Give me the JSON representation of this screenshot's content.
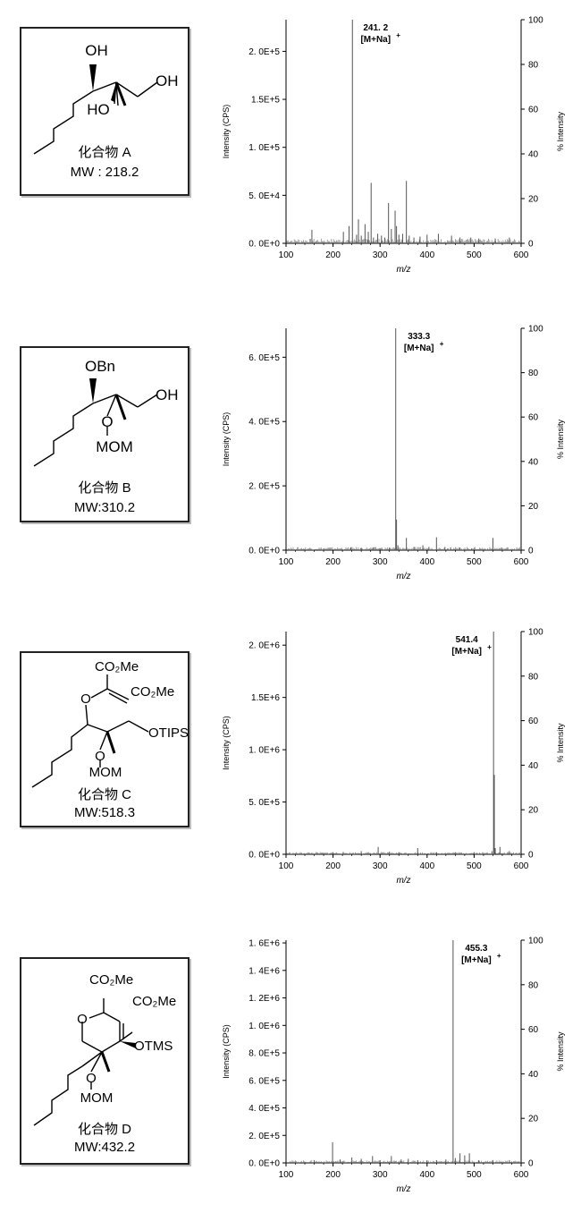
{
  "panels": [
    {
      "compound": {
        "name": "化合物 A",
        "mw": "MW : 218.2",
        "groups": {
          "top": "OH",
          "right": "OH",
          "left": "HO"
        }
      },
      "chart_data": {
        "type": "bar",
        "xlabel": "m/z",
        "ylabel": "Intensity (CPS)",
        "y2label": "% Intensity",
        "xlim": [
          100,
          600
        ],
        "ylim": [
          0,
          233000
        ],
        "yticks": [
          0,
          50000,
          100000,
          150000,
          200000
        ],
        "ytick_labels": [
          "0. 0E+0",
          "5. 0E+4",
          "1. 0E+5",
          "1.5E+5",
          "2. 0E+5"
        ],
        "y2ticks": [
          0,
          20,
          40,
          60,
          80,
          100
        ],
        "xticks": [
          100,
          200,
          300,
          400,
          500,
          600
        ],
        "annotation": {
          "mz": 241.2,
          "line1": "241. 2",
          "line2": "[M+Na]",
          "sup": "+"
        },
        "peaks": [
          [
            155,
            14000
          ],
          [
            222,
            12000
          ],
          [
            234,
            18000
          ],
          [
            241.2,
            233000
          ],
          [
            250,
            9000
          ],
          [
            254,
            25000
          ],
          [
            260,
            8000
          ],
          [
            268,
            20000
          ],
          [
            275,
            12000
          ],
          [
            281,
            63000
          ],
          [
            286,
            6000
          ],
          [
            295,
            10000
          ],
          [
            303,
            8000
          ],
          [
            310,
            6000
          ],
          [
            318,
            42000
          ],
          [
            324,
            15000
          ],
          [
            332,
            34000
          ],
          [
            335,
            18000
          ],
          [
            340,
            9000
          ],
          [
            348,
            10000
          ],
          [
            356,
            65000
          ],
          [
            362,
            8000
          ],
          [
            372,
            6000
          ],
          [
            385,
            7000
          ],
          [
            400,
            9000
          ],
          [
            424,
            10000
          ],
          [
            452,
            8000
          ],
          [
            470,
            6000
          ],
          [
            493,
            6000
          ],
          [
            510,
            5000
          ],
          [
            545,
            5000
          ],
          [
            575,
            6000
          ]
        ],
        "noise_level": 4000
      }
    },
    {
      "compound": {
        "name": "化合物 B",
        "mw": "MW:310.2",
        "groups": {
          "top": "OBn",
          "right": "OH",
          "o": "O",
          "bottom": "MOM"
        }
      },
      "chart_data": {
        "type": "bar",
        "xlabel": "m/z",
        "ylabel": "Intensity (CPS)",
        "y2label": "% Intensity",
        "xlim": [
          100,
          600
        ],
        "ylim": [
          0,
          690000
        ],
        "yticks": [
          0,
          200000,
          400000,
          600000
        ],
        "ytick_labels": [
          "0. 0E+0",
          "2. 0E+5",
          "4. 0E+5",
          "6. 0E+5"
        ],
        "y2ticks": [
          0,
          20,
          40,
          60,
          80,
          100
        ],
        "xticks": [
          100,
          200,
          300,
          400,
          500,
          600
        ],
        "annotation": {
          "mz": 333.3,
          "line1": "333.3",
          "line2": "[M+Na]",
          "sup": "+"
        },
        "peaks": [
          [
            238,
            9000
          ],
          [
            260,
            6000
          ],
          [
            285,
            8000
          ],
          [
            300,
            6000
          ],
          [
            320,
            8000
          ],
          [
            333.3,
            690000
          ],
          [
            335,
            95000
          ],
          [
            338,
            15000
          ],
          [
            356,
            38000
          ],
          [
            372,
            10000
          ],
          [
            391,
            15000
          ],
          [
            404,
            10000
          ],
          [
            420,
            40000
          ],
          [
            438,
            10000
          ],
          [
            450,
            9000
          ],
          [
            470,
            8000
          ],
          [
            495,
            6000
          ],
          [
            540,
            38000
          ],
          [
            560,
            6000
          ]
        ],
        "noise_level": 8000
      }
    },
    {
      "compound": {
        "name": "化合物 C",
        "mw": "MW:518.3",
        "groups": {
          "ester1": "CO₂Me",
          "ester2": "CO₂Me",
          "o": "O",
          "right": "OTIPS",
          "o2": "O",
          "bottom": "MOM"
        }
      },
      "chart_data": {
        "type": "bar",
        "xlabel": "m/z",
        "ylabel": "Intensity (CPS)",
        "y2label": "% Intensity",
        "xlim": [
          100,
          600
        ],
        "ylim": [
          0,
          2130000
        ],
        "yticks": [
          0,
          500000,
          1000000,
          1500000,
          2000000
        ],
        "ytick_labels": [
          "0. 0E+0",
          "5. 0E+5",
          "1. 0E+6",
          "1.5E+6",
          "2. 0E+6"
        ],
        "y2ticks": [
          0,
          20,
          40,
          60,
          80,
          100
        ],
        "xticks": [
          100,
          200,
          300,
          400,
          500,
          600
        ],
        "annotation": {
          "mz": 541.4,
          "line1": "541.4",
          "line2": "[M+Na]",
          "sup": "+"
        },
        "peaks": [
          [
            200,
            20000
          ],
          [
            260,
            30000
          ],
          [
            296,
            70000
          ],
          [
            320,
            25000
          ],
          [
            340,
            20000
          ],
          [
            380,
            60000
          ],
          [
            420,
            20000
          ],
          [
            460,
            20000
          ],
          [
            500,
            20000
          ],
          [
            538,
            30000
          ],
          [
            541.4,
            2130000
          ],
          [
            543,
            760000
          ],
          [
            545,
            60000
          ],
          [
            555,
            70000
          ],
          [
            575,
            30000
          ]
        ],
        "noise_level": 18000
      }
    },
    {
      "compound": {
        "name": "化合物 D",
        "mw": "MW:432.2",
        "groups": {
          "ester1": "CO₂Me",
          "ester2": "CO₂Me",
          "o": "O",
          "right": "OTMS",
          "o2": "O",
          "bottom": "MOM"
        }
      },
      "chart_data": {
        "type": "bar",
        "xlabel": "m/z",
        "ylabel": "Intensity (CPS)",
        "y2label": "% Intensity",
        "xlim": [
          100,
          600
        ],
        "ylim": [
          0,
          1620000
        ],
        "yticks": [
          0,
          200000,
          400000,
          600000,
          800000,
          1000000,
          1200000,
          1400000,
          1600000
        ],
        "ytick_labels": [
          "0. 0E+0",
          "2. 0E+5",
          "4. 0E+5",
          "6. 0E+5",
          "8. 0E+5",
          "1. 0E+6",
          "1. 2E+6",
          "1. 4E+6",
          "1. 6E+6"
        ],
        "y2ticks": [
          0,
          20,
          40,
          60,
          80,
          100
        ],
        "xticks": [
          100,
          200,
          300,
          400,
          500,
          600
        ],
        "annotation": {
          "mz": 455.3,
          "line1": "455.3",
          "line2": "[M+Na]",
          "sup": "+"
        },
        "peaks": [
          [
            160,
            20000
          ],
          [
            199,
            150000
          ],
          [
            215,
            25000
          ],
          [
            240,
            40000
          ],
          [
            260,
            30000
          ],
          [
            284,
            50000
          ],
          [
            300,
            20000
          ],
          [
            324,
            50000
          ],
          [
            345,
            25000
          ],
          [
            360,
            30000
          ],
          [
            380,
            20000
          ],
          [
            400,
            20000
          ],
          [
            420,
            20000
          ],
          [
            440,
            25000
          ],
          [
            455.3,
            1620000
          ],
          [
            460,
            35000
          ],
          [
            470,
            70000
          ],
          [
            480,
            55000
          ],
          [
            490,
            70000
          ],
          [
            510,
            20000
          ],
          [
            540,
            20000
          ],
          [
            575,
            20000
          ]
        ],
        "noise_level": 15000
      }
    }
  ]
}
